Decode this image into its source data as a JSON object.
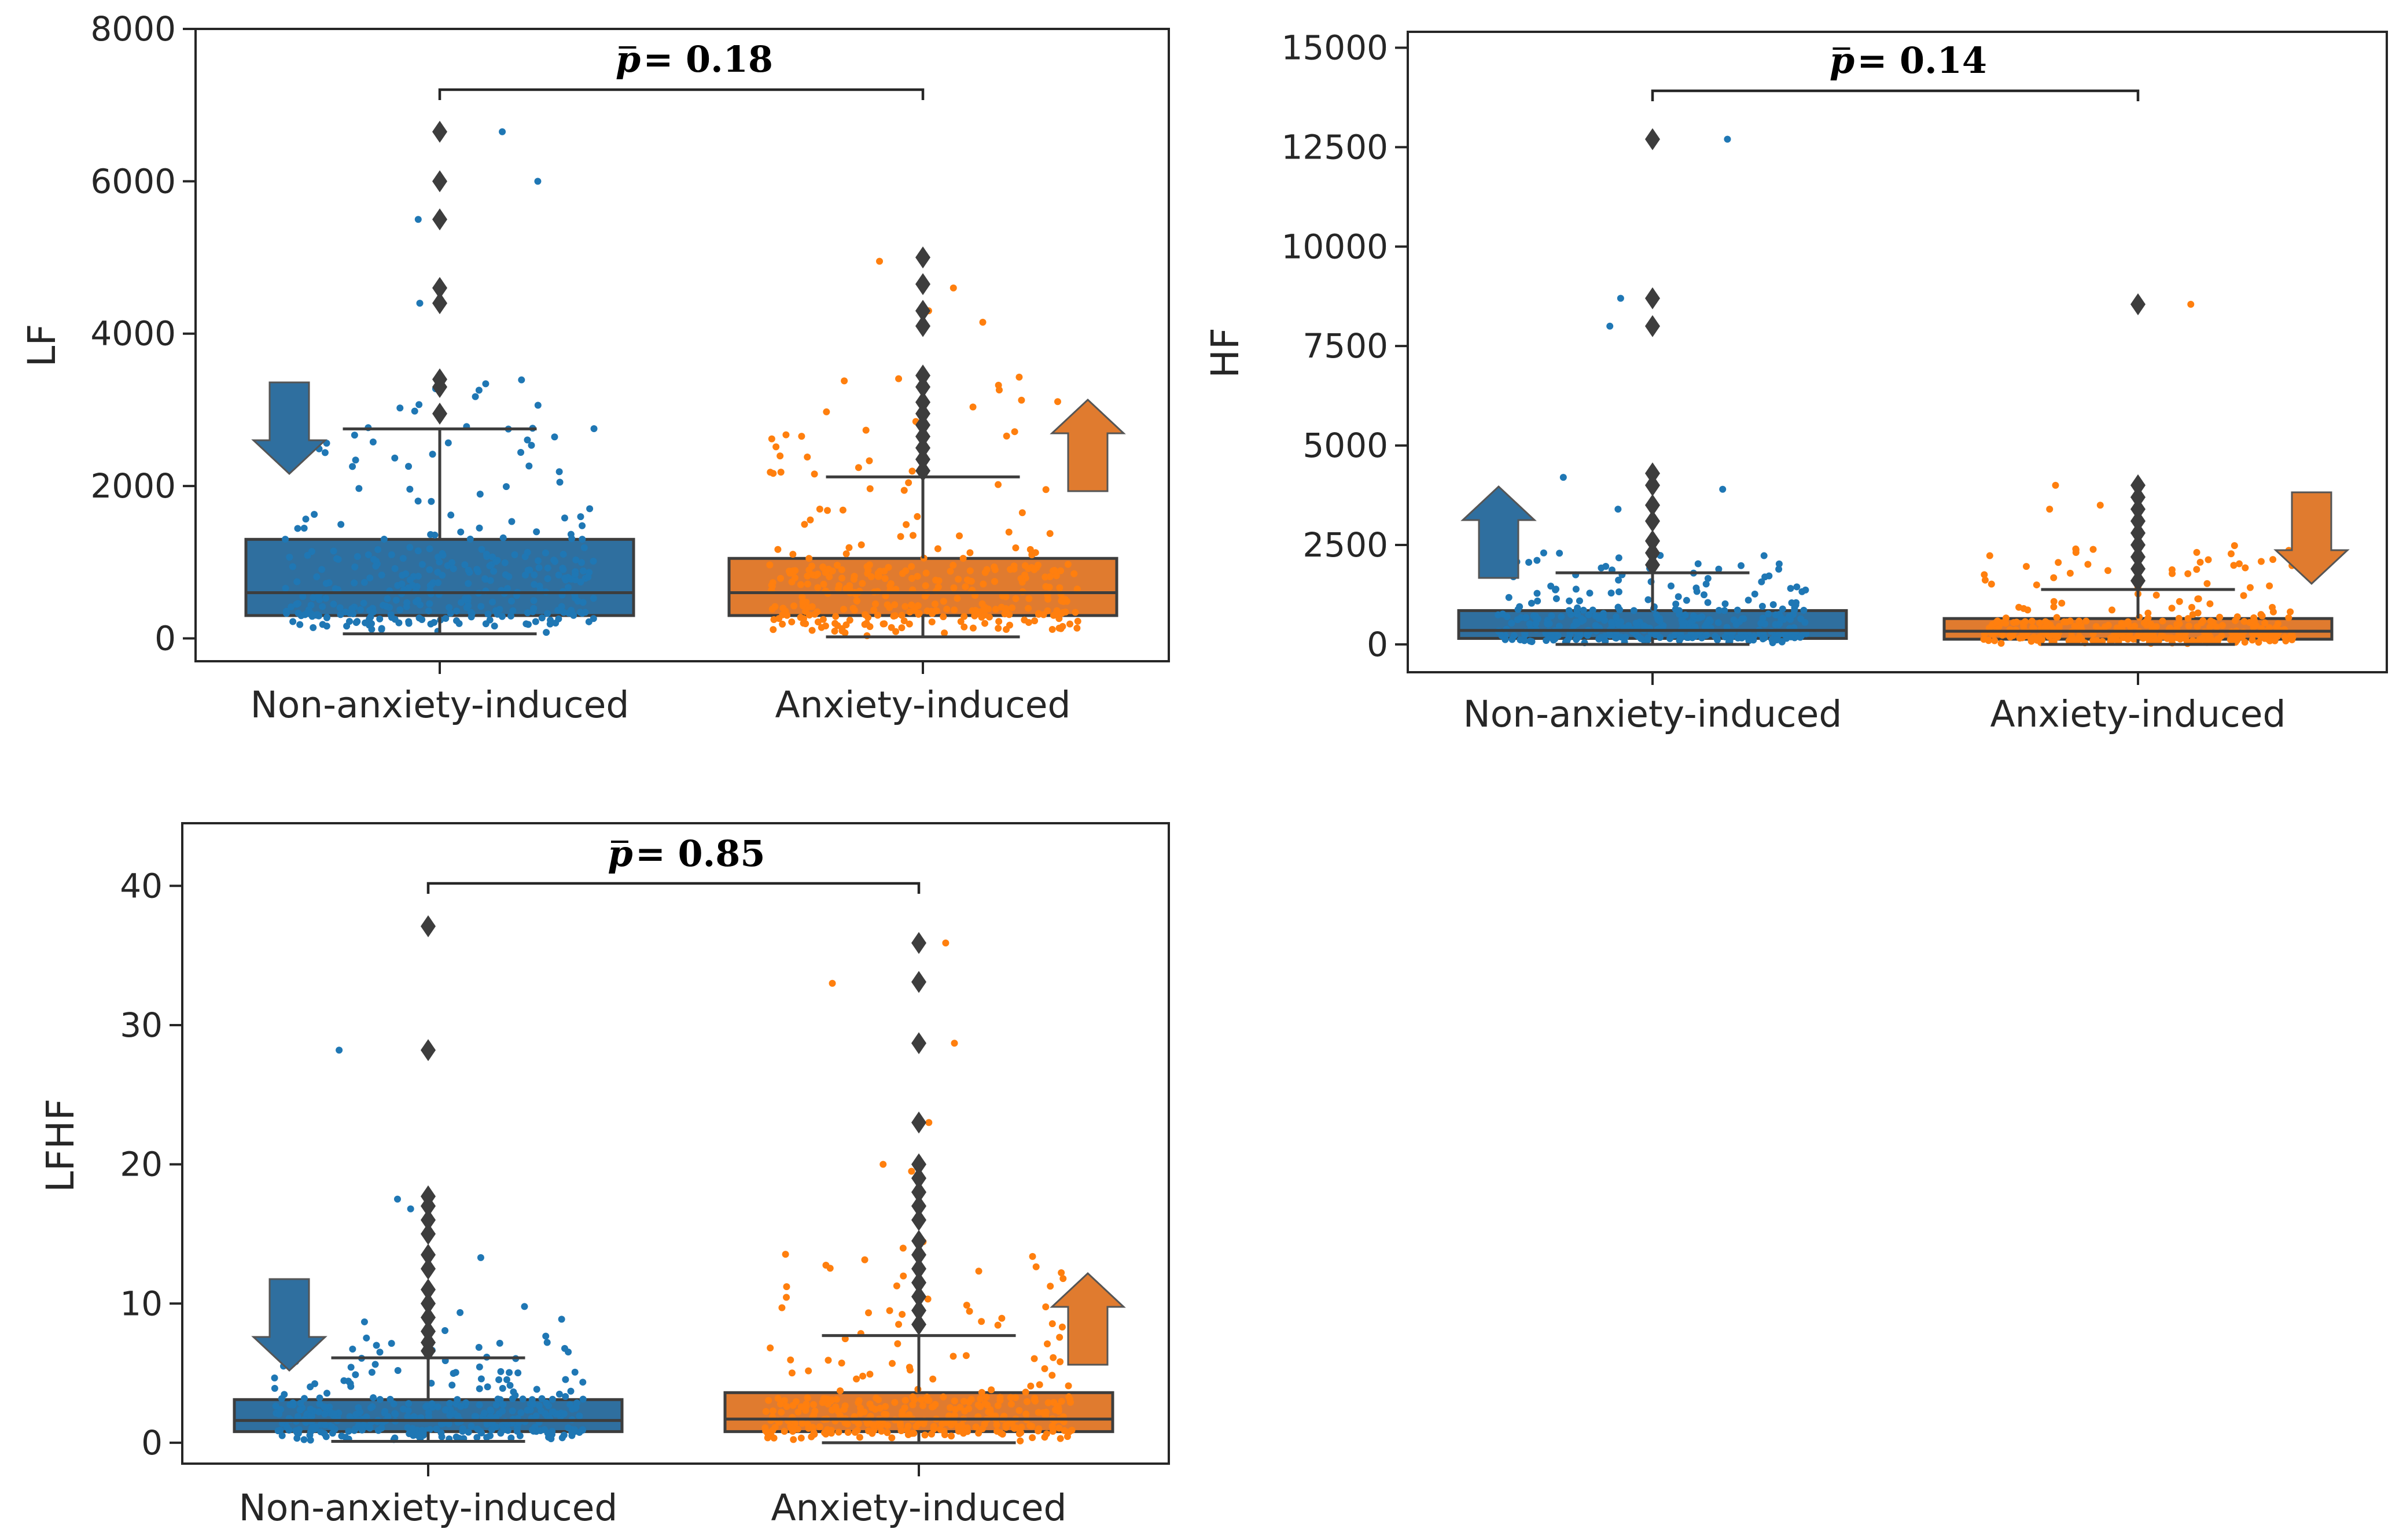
{
  "chart_data": [
    {
      "id": "lf",
      "type": "box",
      "ylabel": "LF",
      "ylim": [
        -300,
        8000
      ],
      "yticks": [
        0,
        2000,
        4000,
        6000,
        8000
      ],
      "yticklabels": [
        "0",
        "2000",
        "4000",
        "6000",
        "8000"
      ],
      "categories": [
        "Non-anxiety-induced",
        "Anxiety-induced"
      ],
      "p_text": "= 0.18",
      "p_symbol": "p",
      "colors": [
        "#2f6f9f",
        "#e07b2f"
      ],
      "point_colors": [
        "#1f77b4",
        "#ff7f0e"
      ],
      "boxes": [
        {
          "q1": 300,
          "median": 600,
          "q3": 1300,
          "whisker_low": 60,
          "whisker_high": 2750,
          "outliers": [
            2950,
            3300,
            3400,
            4400,
            4600,
            5500,
            6000,
            6650
          ],
          "scatter_max": 3400,
          "scatter_extra": [
            5500,
            6000,
            6650,
            4400
          ]
        },
        {
          "q1": 300,
          "median": 600,
          "q3": 1050,
          "whisker_low": 20,
          "whisker_high": 2120,
          "outliers": [
            2200,
            2350,
            2500,
            2650,
            2800,
            2950,
            3100,
            3300,
            3450,
            4100,
            4300,
            4650,
            5000
          ],
          "scatter_max": 3450,
          "scatter_extra": [
            4300,
            4600,
            4150,
            4950
          ]
        }
      ],
      "arrows": [
        "down",
        "up"
      ]
    },
    {
      "id": "hf",
      "type": "box",
      "ylabel": "HF",
      "ylim": [
        -700,
        15400
      ],
      "yticks": [
        0,
        2500,
        5000,
        7500,
        10000,
        12500,
        15000
      ],
      "yticklabels": [
        "0",
        "2500",
        "5000",
        "7500",
        "10000",
        "12500",
        "15000"
      ],
      "categories": [
        "Non-anxiety-induced",
        "Anxiety-induced"
      ],
      "p_text": "= 0.14",
      "p_symbol": "p",
      "colors": [
        "#2f6f9f",
        "#e07b2f"
      ],
      "point_colors": [
        "#1f77b4",
        "#ff7f0e"
      ],
      "boxes": [
        {
          "q1": 150,
          "median": 350,
          "q3": 850,
          "whisker_low": 0,
          "whisker_high": 1800,
          "outliers": [
            2000,
            2300,
            2600,
            3100,
            3500,
            4000,
            4300,
            8000,
            8700,
            12700
          ],
          "scatter_max": 2300,
          "scatter_extra": [
            4200,
            3900,
            8000,
            8700,
            12700,
            3400
          ]
        },
        {
          "q1": 130,
          "median": 330,
          "q3": 650,
          "whisker_low": 0,
          "whisker_high": 1380,
          "outliers": [
            1600,
            1900,
            2200,
            2500,
            2800,
            3100,
            3400,
            3700,
            4000,
            8550
          ],
          "scatter_max": 2500,
          "scatter_extra": [
            3400,
            3500,
            4000,
            8550
          ]
        }
      ],
      "arrows": [
        "up",
        "down"
      ]
    },
    {
      "id": "lfhf",
      "type": "box",
      "ylabel": "LFHF",
      "ylim": [
        -1.5,
        44.5
      ],
      "yticks": [
        0,
        10,
        20,
        30,
        40
      ],
      "yticklabels": [
        "0",
        "10",
        "20",
        "30",
        "40"
      ],
      "categories": [
        "Non-anxiety-induced",
        "Anxiety-induced"
      ],
      "p_text": "= 0.85",
      "p_symbol": "p",
      "colors": [
        "#2f6f9f",
        "#e07b2f"
      ],
      "point_colors": [
        "#1f77b4",
        "#ff7f0e"
      ],
      "boxes": [
        {
          "q1": 0.8,
          "median": 1.6,
          "q3": 3.1,
          "whisker_low": 0.1,
          "whisker_high": 6.1,
          "outliers": [
            6.6,
            7.2,
            8.0,
            9.0,
            10.0,
            11.0,
            12.5,
            13.5,
            15.0,
            16.0,
            17.0,
            17.7,
            28.2,
            37.1
          ],
          "scatter_max": 10,
          "scatter_extra": [
            28.2,
            37.1,
            17.5,
            16.8,
            13.3
          ]
        },
        {
          "q1": 0.8,
          "median": 1.7,
          "q3": 3.6,
          "whisker_low": 0.0,
          "whisker_high": 7.7,
          "outliers": [
            8.5,
            9.5,
            10.5,
            11.5,
            12.5,
            13.5,
            14.5,
            16.0,
            17.0,
            18.0,
            19.0,
            20.0,
            23.0,
            28.7,
            33.1,
            35.9
          ],
          "scatter_max": 15,
          "scatter_extra": [
            35.9,
            33.0,
            28.7,
            23.0,
            20.0,
            19.5
          ]
        }
      ],
      "arrows": [
        "down",
        "up"
      ]
    }
  ]
}
